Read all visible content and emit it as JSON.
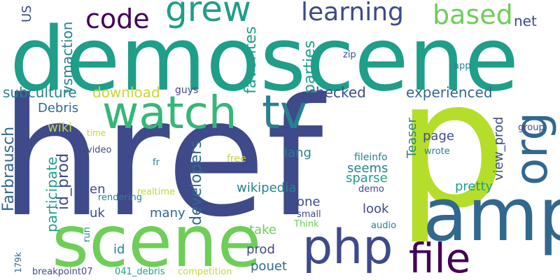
{
  "title": "word cloud",
  "palette": {
    "dark_purple": "#440154",
    "indigo": "#3e4a89",
    "blue": "#31688e",
    "teal": "#26828e",
    "green_teal": "#1f9e89",
    "green": "#35b779",
    "light_green": "#6ece58",
    "lime": "#b5de2b",
    "yellow": "#c8d63a"
  },
  "words": {
    "href": "href",
    "p": "p",
    "demoscene": "demoscene",
    "amp": "amp",
    "scene": "scene",
    "watch": "watch",
    "tv": "tv",
    "php": "php",
    "file": "file",
    "org": "org",
    "grew": "grew",
    "code": "code",
    "learning": "learning",
    "based": "based",
    "net": "net",
    "us": "US",
    "vsmaction": "vsmaction",
    "favorites": "favorites",
    "parties": "parties",
    "zip": "zip",
    "app": "app",
    "subculture": "subculture",
    "download": "download",
    "guys": "guys",
    "checked": "checked",
    "experienced": "experienced",
    "debris": "Debris",
    "teaser": "Teaser",
    "group": "group",
    "farbrausch": "Farbrausch",
    "wiki": "wiki",
    "time": "time",
    "video": "video",
    "id_prod": "id_prod",
    "developers": "developers",
    "page": "page",
    "view_prod": "view_prod",
    "participate": "participate",
    "fr": "fr",
    "free": "free",
    "lang": "lang",
    "fileinfo": "fileinfo",
    "wrote": "wrote",
    "seems": "seems",
    "sparse": "sparse",
    "en": "en",
    "rendering": "rendering",
    "wikipedia": "wikipedia",
    "pretty": "pretty",
    "demo": "demo",
    "realtime": "realtime",
    "uk": "uk",
    "many": "many",
    "one": "one",
    "small": "small",
    "look": "look",
    "run": "run",
    "take": "take",
    "think": "Think",
    "audio": "audio",
    "id": "id",
    "prod": "prod",
    "k179": "179k",
    "pouet": "pouet",
    "breakpoint07": "breakpoint07",
    "debris041": "041_debris",
    "competition": "competition"
  }
}
